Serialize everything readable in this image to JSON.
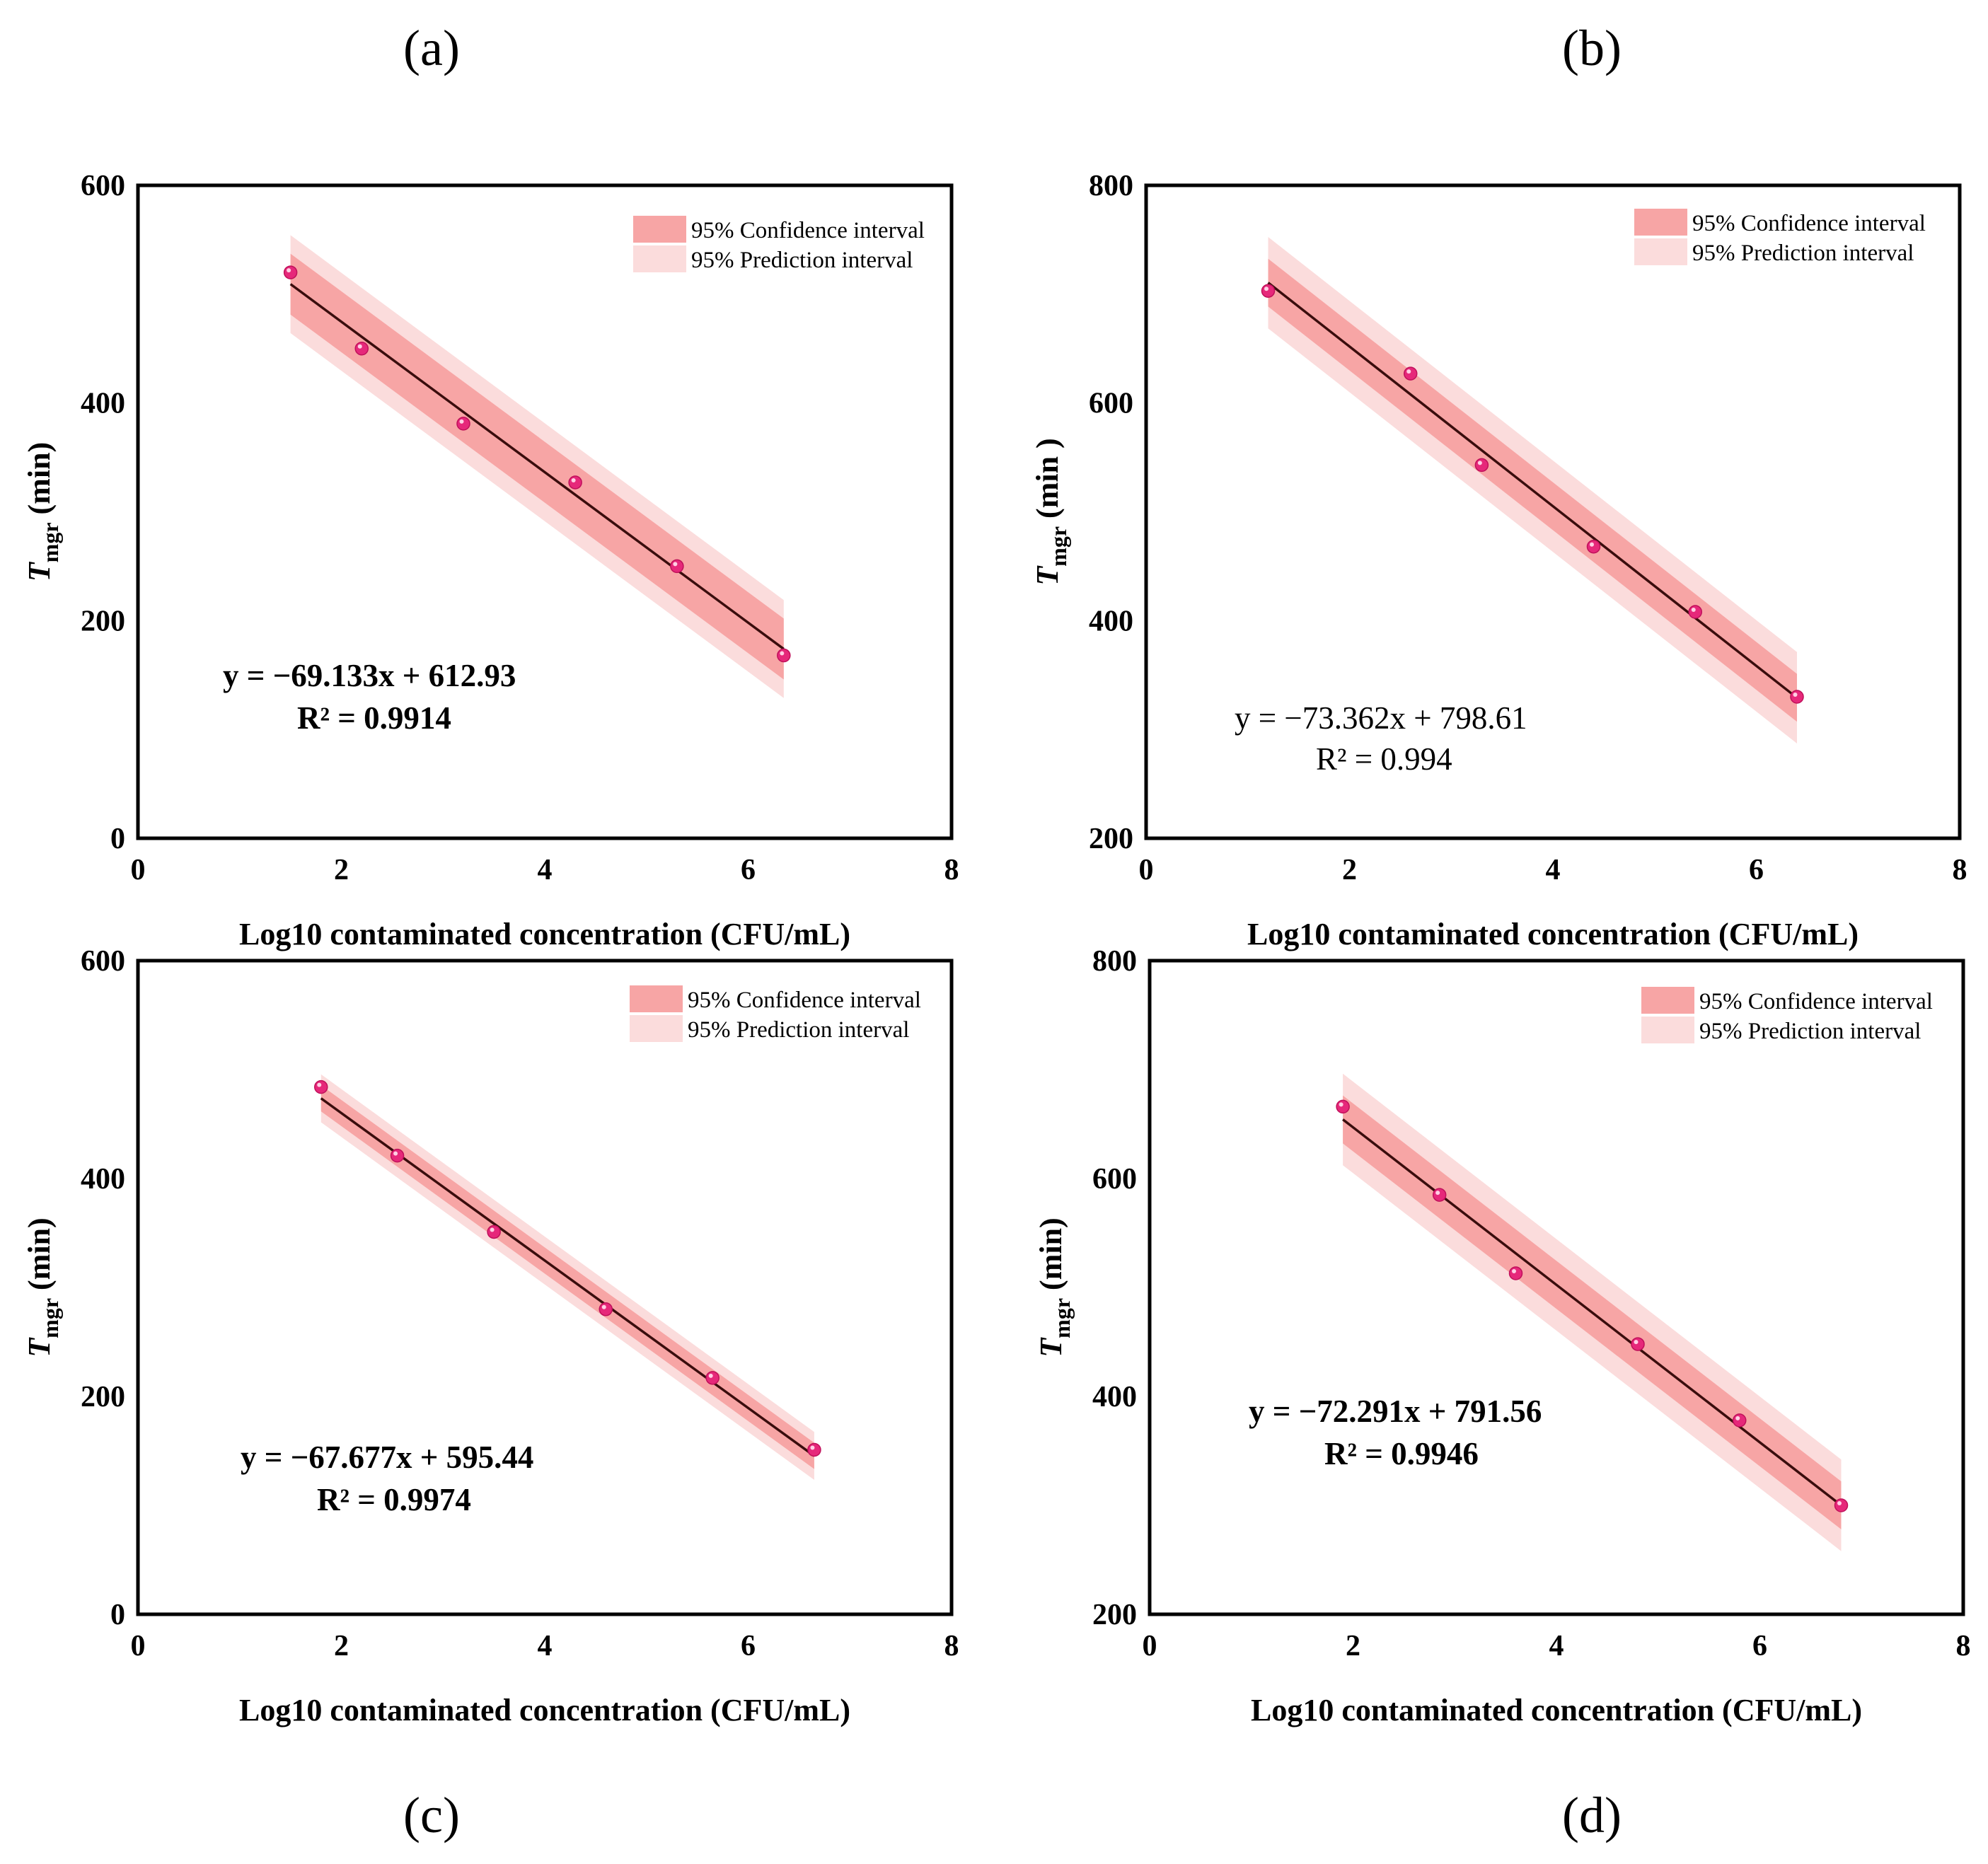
{
  "chart_data": [
    {
      "panel_label": "(a)",
      "type": "scatter",
      "title": "",
      "xlabel": "Log10 contaminated concentration (CFU/mL)",
      "ylabel": {
        "main": "T",
        "sub": "mgr",
        "unit": " (min)"
      },
      "xlim": [
        0,
        8
      ],
      "ylim": [
        0,
        600
      ],
      "xticks": [
        0,
        2,
        4,
        6,
        8
      ],
      "yticks": [
        0,
        200,
        400,
        600
      ],
      "legend": {
        "position": "top-right",
        "confidence": "95% Confidence interval",
        "prediction": "95% Prediction interval"
      },
      "colors": {
        "ci": "#f7a5a5",
        "pi": "#fbdcdc",
        "point": "#e6287a",
        "line": "#3a0d0d"
      },
      "points": {
        "x": [
          1.5,
          2.2,
          3.2,
          4.3,
          5.3,
          6.35
        ],
        "y": [
          520,
          450,
          381,
          327,
          250,
          168
        ]
      },
      "fit": {
        "slope": -69.133,
        "intercept": 612.93,
        "ci_half": 28,
        "pi_half": 45
      },
      "equation": "y = −69.133x + 612.93",
      "r2": "R² = 0.9914",
      "equation_bold": true
    },
    {
      "panel_label": "(b)",
      "type": "scatter",
      "title": "",
      "xlabel": "Log10 contaminated concentration (CFU/mL)",
      "ylabel": {
        "main": "T",
        "sub": "mgr",
        "unit": " (min )"
      },
      "xlim": [
        0,
        8
      ],
      "ylim": [
        200,
        800
      ],
      "xticks": [
        0,
        2,
        4,
        6,
        8
      ],
      "yticks": [
        200,
        400,
        600,
        800
      ],
      "legend": {
        "position": "top-right",
        "confidence": "95% Confidence interval",
        "prediction": "95% Prediction interval"
      },
      "colors": {
        "ci": "#f7a5a5",
        "pi": "#fbdcdc",
        "point": "#e6287a",
        "line": "#3a0d0d"
      },
      "points": {
        "x": [
          1.2,
          2.6,
          3.3,
          4.4,
          5.4,
          6.4
        ],
        "y": [
          703,
          627,
          543,
          468,
          408,
          330
        ]
      },
      "fit": {
        "slope": -73.362,
        "intercept": 798.61,
        "ci_half": 22,
        "pi_half": 42
      },
      "equation": "y = −73.362x + 798.61",
      "r2": "R² = 0.994",
      "equation_bold": false
    },
    {
      "panel_label": "(c)",
      "type": "scatter",
      "title": "",
      "xlabel": "Log10 contaminated concentration (CFU/mL)",
      "ylabel": {
        "main": "T",
        "sub": "mgr",
        "unit": " (min)"
      },
      "xlim": [
        0,
        8
      ],
      "ylim": [
        0,
        600
      ],
      "xticks": [
        0,
        2,
        4,
        6,
        8
      ],
      "yticks": [
        0,
        200,
        400,
        600
      ],
      "legend": {
        "position": "top-right",
        "confidence": "95% Confidence interval",
        "prediction": "95% Prediction interval"
      },
      "colors": {
        "ci": "#f7a5a5",
        "pi": "#fbdcdc",
        "point": "#e6287a",
        "line": "#3a0d0d"
      },
      "points": {
        "x": [
          1.8,
          2.55,
          3.5,
          4.6,
          5.65,
          6.65
        ],
        "y": [
          484,
          421,
          351,
          280,
          217,
          151
        ]
      },
      "fit": {
        "slope": -67.677,
        "intercept": 595.44,
        "ci_half": 12,
        "pi_half": 22
      },
      "equation": "y = −67.677x + 595.44",
      "r2": "R² = 0.9974",
      "equation_bold": true
    },
    {
      "panel_label": "(d)",
      "type": "scatter",
      "title": "",
      "xlabel": "Log10 contaminated concentration (CFU/mL)",
      "ylabel": {
        "main": "T",
        "sub": "mgr",
        "unit": " (min)"
      },
      "xlim": [
        0,
        8
      ],
      "ylim": [
        200,
        800
      ],
      "xticks": [
        0,
        2,
        4,
        6,
        8
      ],
      "yticks": [
        200,
        400,
        600,
        800
      ],
      "legend": {
        "position": "top-right",
        "confidence": "95% Confidence interval",
        "prediction": "95% Prediction interval"
      },
      "colors": {
        "ci": "#f7a5a5",
        "pi": "#fbdcdc",
        "point": "#e6287a",
        "line": "#3a0d0d"
      },
      "points": {
        "x": [
          1.9,
          2.85,
          3.6,
          4.8,
          5.8,
          6.8
        ],
        "y": [
          666,
          585,
          513,
          448,
          378,
          300
        ]
      },
      "fit": {
        "slope": -72.291,
        "intercept": 791.56,
        "ci_half": 22,
        "pi_half": 42
      },
      "equation": "y = −72.291x + 791.56",
      "r2": "R² = 0.9946",
      "equation_bold": true
    }
  ]
}
